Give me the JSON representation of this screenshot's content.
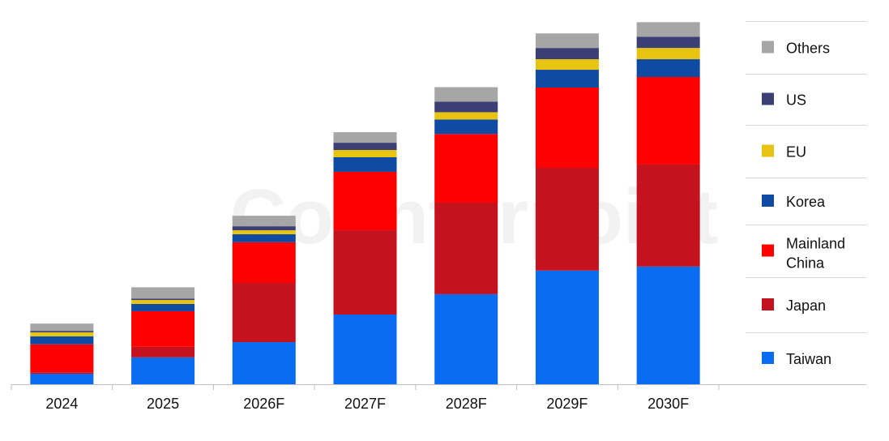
{
  "watermark": "Counterpoint",
  "chart_data": {
    "type": "bar",
    "stacked": true,
    "categories": [
      "2024",
      "2025",
      "2026F",
      "2027F",
      "2028F",
      "2029F",
      "2030F"
    ],
    "ylim": [
      0,
      100
    ],
    "grid": false,
    "legend_position": "right",
    "series": [
      {
        "name": "Taiwan",
        "color": "#0a6cf0",
        "values": [
          2.9,
          7.4,
          11.6,
          19.2,
          24.8,
          31.3,
          32.4
        ]
      },
      {
        "name": "Japan",
        "color": "#c5121f",
        "values": [
          0.4,
          2.9,
          16.3,
          23.2,
          25.2,
          28.3,
          28.1
        ]
      },
      {
        "name": "Mainland China",
        "color": "#ff0000",
        "values": [
          7.7,
          9.8,
          11.2,
          16.1,
          18.9,
          22.1,
          24.1
        ]
      },
      {
        "name": "Korea",
        "color": "#0f4aa3",
        "values": [
          2.2,
          2.0,
          2.2,
          4.0,
          4.0,
          4.9,
          4.9
        ]
      },
      {
        "name": "EU",
        "color": "#e8c412",
        "values": [
          1.1,
          1.1,
          1.1,
          2.0,
          2.0,
          2.9,
          3.1
        ]
      },
      {
        "name": "US",
        "color": "#3c3f74",
        "values": [
          0.4,
          0.4,
          1.1,
          2.0,
          2.9,
          3.1,
          3.1
        ]
      },
      {
        "name": "Others",
        "color": "#a6a6a6",
        "values": [
          2.0,
          3.1,
          2.9,
          2.9,
          4.0,
          4.0,
          4.0
        ]
      }
    ]
  }
}
